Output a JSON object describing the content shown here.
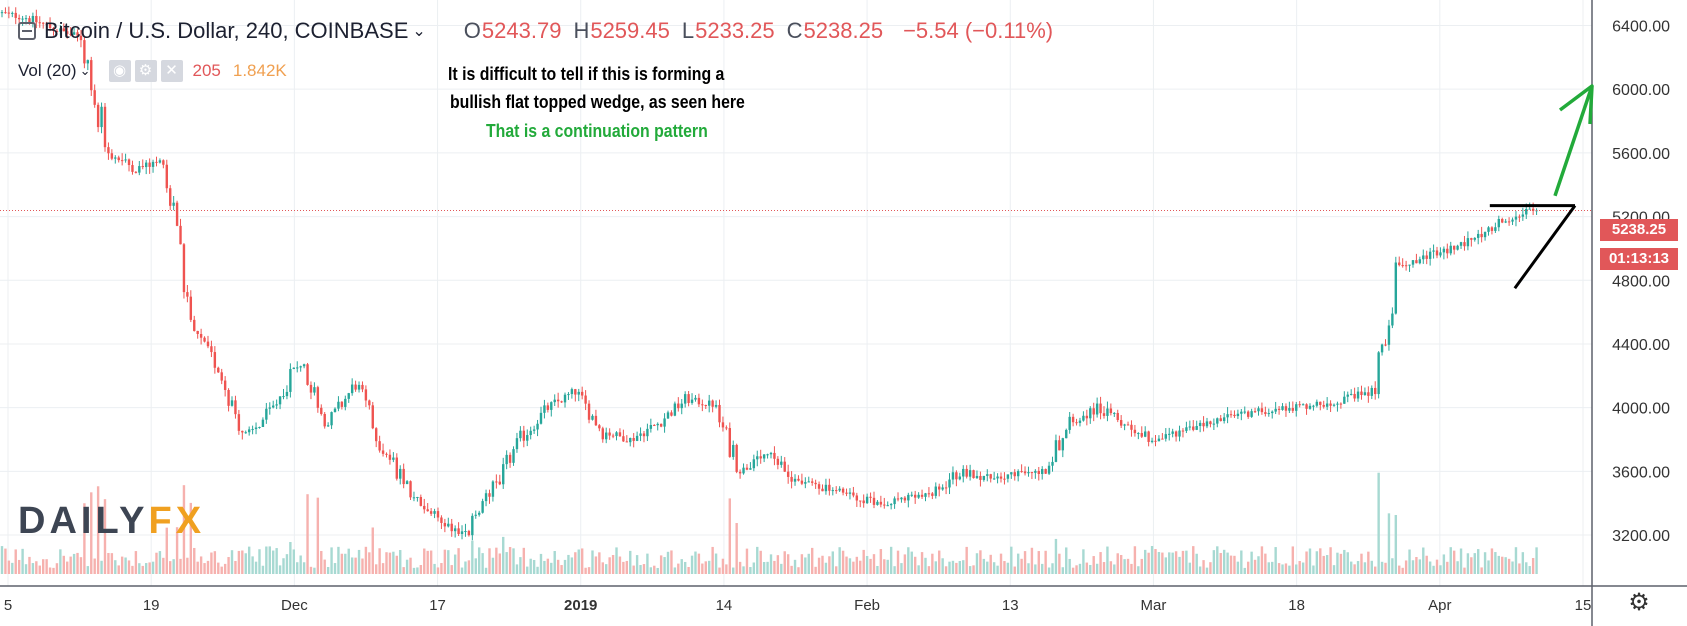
{
  "header": {
    "symbol": "Bitcoin / U.S. Dollar, 240, COINBASE",
    "chevron": "⌄",
    "open_key": "O",
    "open": "5243.79",
    "high_key": "H",
    "high": "5259.45",
    "low_key": "L",
    "low": "5233.25",
    "close_key": "C",
    "close": "5238.25",
    "change": "−5.54 (−0.11%)"
  },
  "volume": {
    "label": "Vol (20)",
    "chevron": "⌄",
    "value1": "205",
    "value2": "1.842K",
    "btn_eye": "◉",
    "btn_gear": "⚙",
    "btn_close": "✕"
  },
  "annotations": {
    "line1": "It is difficult to tell if this is forming a",
    "line2": "bullish flat topped wedge, as seen here",
    "line3": "That is a continuation pattern"
  },
  "price_tag": {
    "price": "5238.25",
    "countdown": "01:13:13"
  },
  "logo": {
    "daily": "DAILY",
    "fx": "FX"
  },
  "settings_icon": "⚙",
  "colors": {
    "up": "#26a69a",
    "down": "#ef5350",
    "up_vol": "#a7d9d2",
    "down_vol": "#f6b1ae",
    "arrow": "#22aa3a",
    "wedge": "#000000",
    "last_price": "#e15759"
  },
  "chart_data": {
    "type": "line",
    "title": "Bitcoin / U.S. Dollar, 240, COINBASE",
    "xlabel": "",
    "ylabel": "",
    "x_ticks": [
      "5",
      "19",
      "Dec",
      "17",
      "2019",
      "14",
      "Feb",
      "13",
      "Mar",
      "18",
      "Apr",
      "15"
    ],
    "y_ticks": [
      3200,
      3600,
      4000,
      4400,
      4800,
      5200,
      5600,
      6000,
      6400
    ],
    "y_tick_labels": [
      "3200.00",
      "3600.00",
      "4000.00",
      "4400.00",
      "4800.00",
      "5200.00",
      "5600.00",
      "6000.00",
      "6400.00"
    ],
    "ylim": [
      2880,
      6560
    ],
    "last_price": 5238.25,
    "grid": true,
    "series": [
      {
        "values": [
          6480,
          6450,
          6380,
          6320,
          5600,
          5500,
          5550,
          4500,
          4250,
          3800,
          4000,
          4300,
          3900,
          4150,
          3750,
          3450,
          3300,
          3200,
          3500,
          3800,
          4000,
          4100,
          3850,
          3800,
          3900,
          4050,
          4020,
          3600,
          3700,
          3550,
          3500,
          3450,
          3400,
          3430,
          3450,
          3600,
          3560,
          3580,
          3600,
          3900,
          4000,
          3900,
          3800,
          3850,
          3900,
          3950,
          3980,
          4000,
          4020,
          4050,
          4100,
          4900,
          4950,
          5000,
          5100,
          5200,
          5238
        ]
      }
    ],
    "annotation_lines": [
      {
        "name": "flat top",
        "x": [
          "Apr",
          "15"
        ],
        "y": [
          5250,
          5250
        ]
      },
      {
        "name": "rising support",
        "x": [
          "Apr",
          "15"
        ],
        "y": [
          4750,
          5250
        ]
      }
    ]
  }
}
